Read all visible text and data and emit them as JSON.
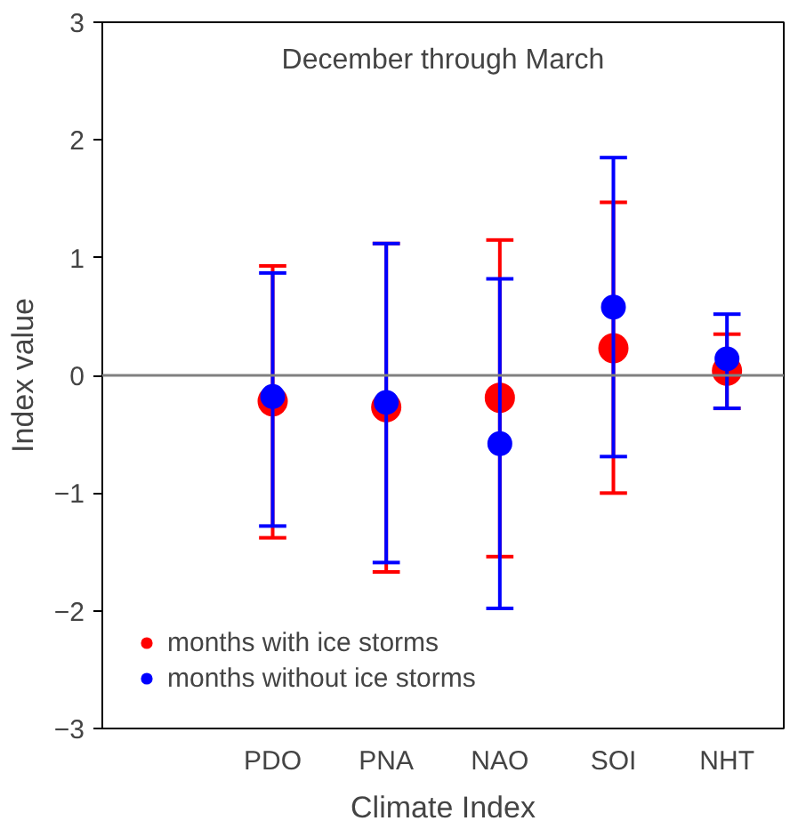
{
  "chart_data": {
    "type": "scatter",
    "title": "December through March",
    "xlabel": "Climate Index",
    "ylabel": "Index value",
    "categories": [
      "PDO",
      "PNA",
      "NAO",
      "SOI",
      "NHT"
    ],
    "series": [
      {
        "name": "months with ice storms",
        "color": "#ff0000",
        "values": [
          -0.22,
          -0.27,
          -0.19,
          0.23,
          0.04
        ],
        "errors": [
          [
            -1.38,
            0.93
          ],
          [
            -1.67,
            1.12
          ],
          [
            -1.54,
            1.15
          ],
          [
            -1.0,
            1.47
          ],
          [
            -0.28,
            0.35
          ]
        ]
      },
      {
        "name": "months without ice storms",
        "color": "#0000ff",
        "values": [
          -0.18,
          -0.23,
          -0.58,
          0.58,
          0.14
        ],
        "errors": [
          [
            -1.28,
            0.87
          ],
          [
            -1.59,
            1.12
          ],
          [
            -1.98,
            0.82
          ],
          [
            -0.69,
            1.85
          ],
          [
            -0.28,
            0.52
          ]
        ]
      }
    ],
    "ylim": [
      -3,
      3
    ],
    "yticks": [
      -3,
      -2,
      -1,
      0,
      1,
      2,
      3
    ],
    "ref_lines": [
      {
        "axis": "y",
        "value": 0,
        "color": "#808080"
      }
    ],
    "marker": "circle",
    "legend": "bottom left",
    "grid": false
  }
}
